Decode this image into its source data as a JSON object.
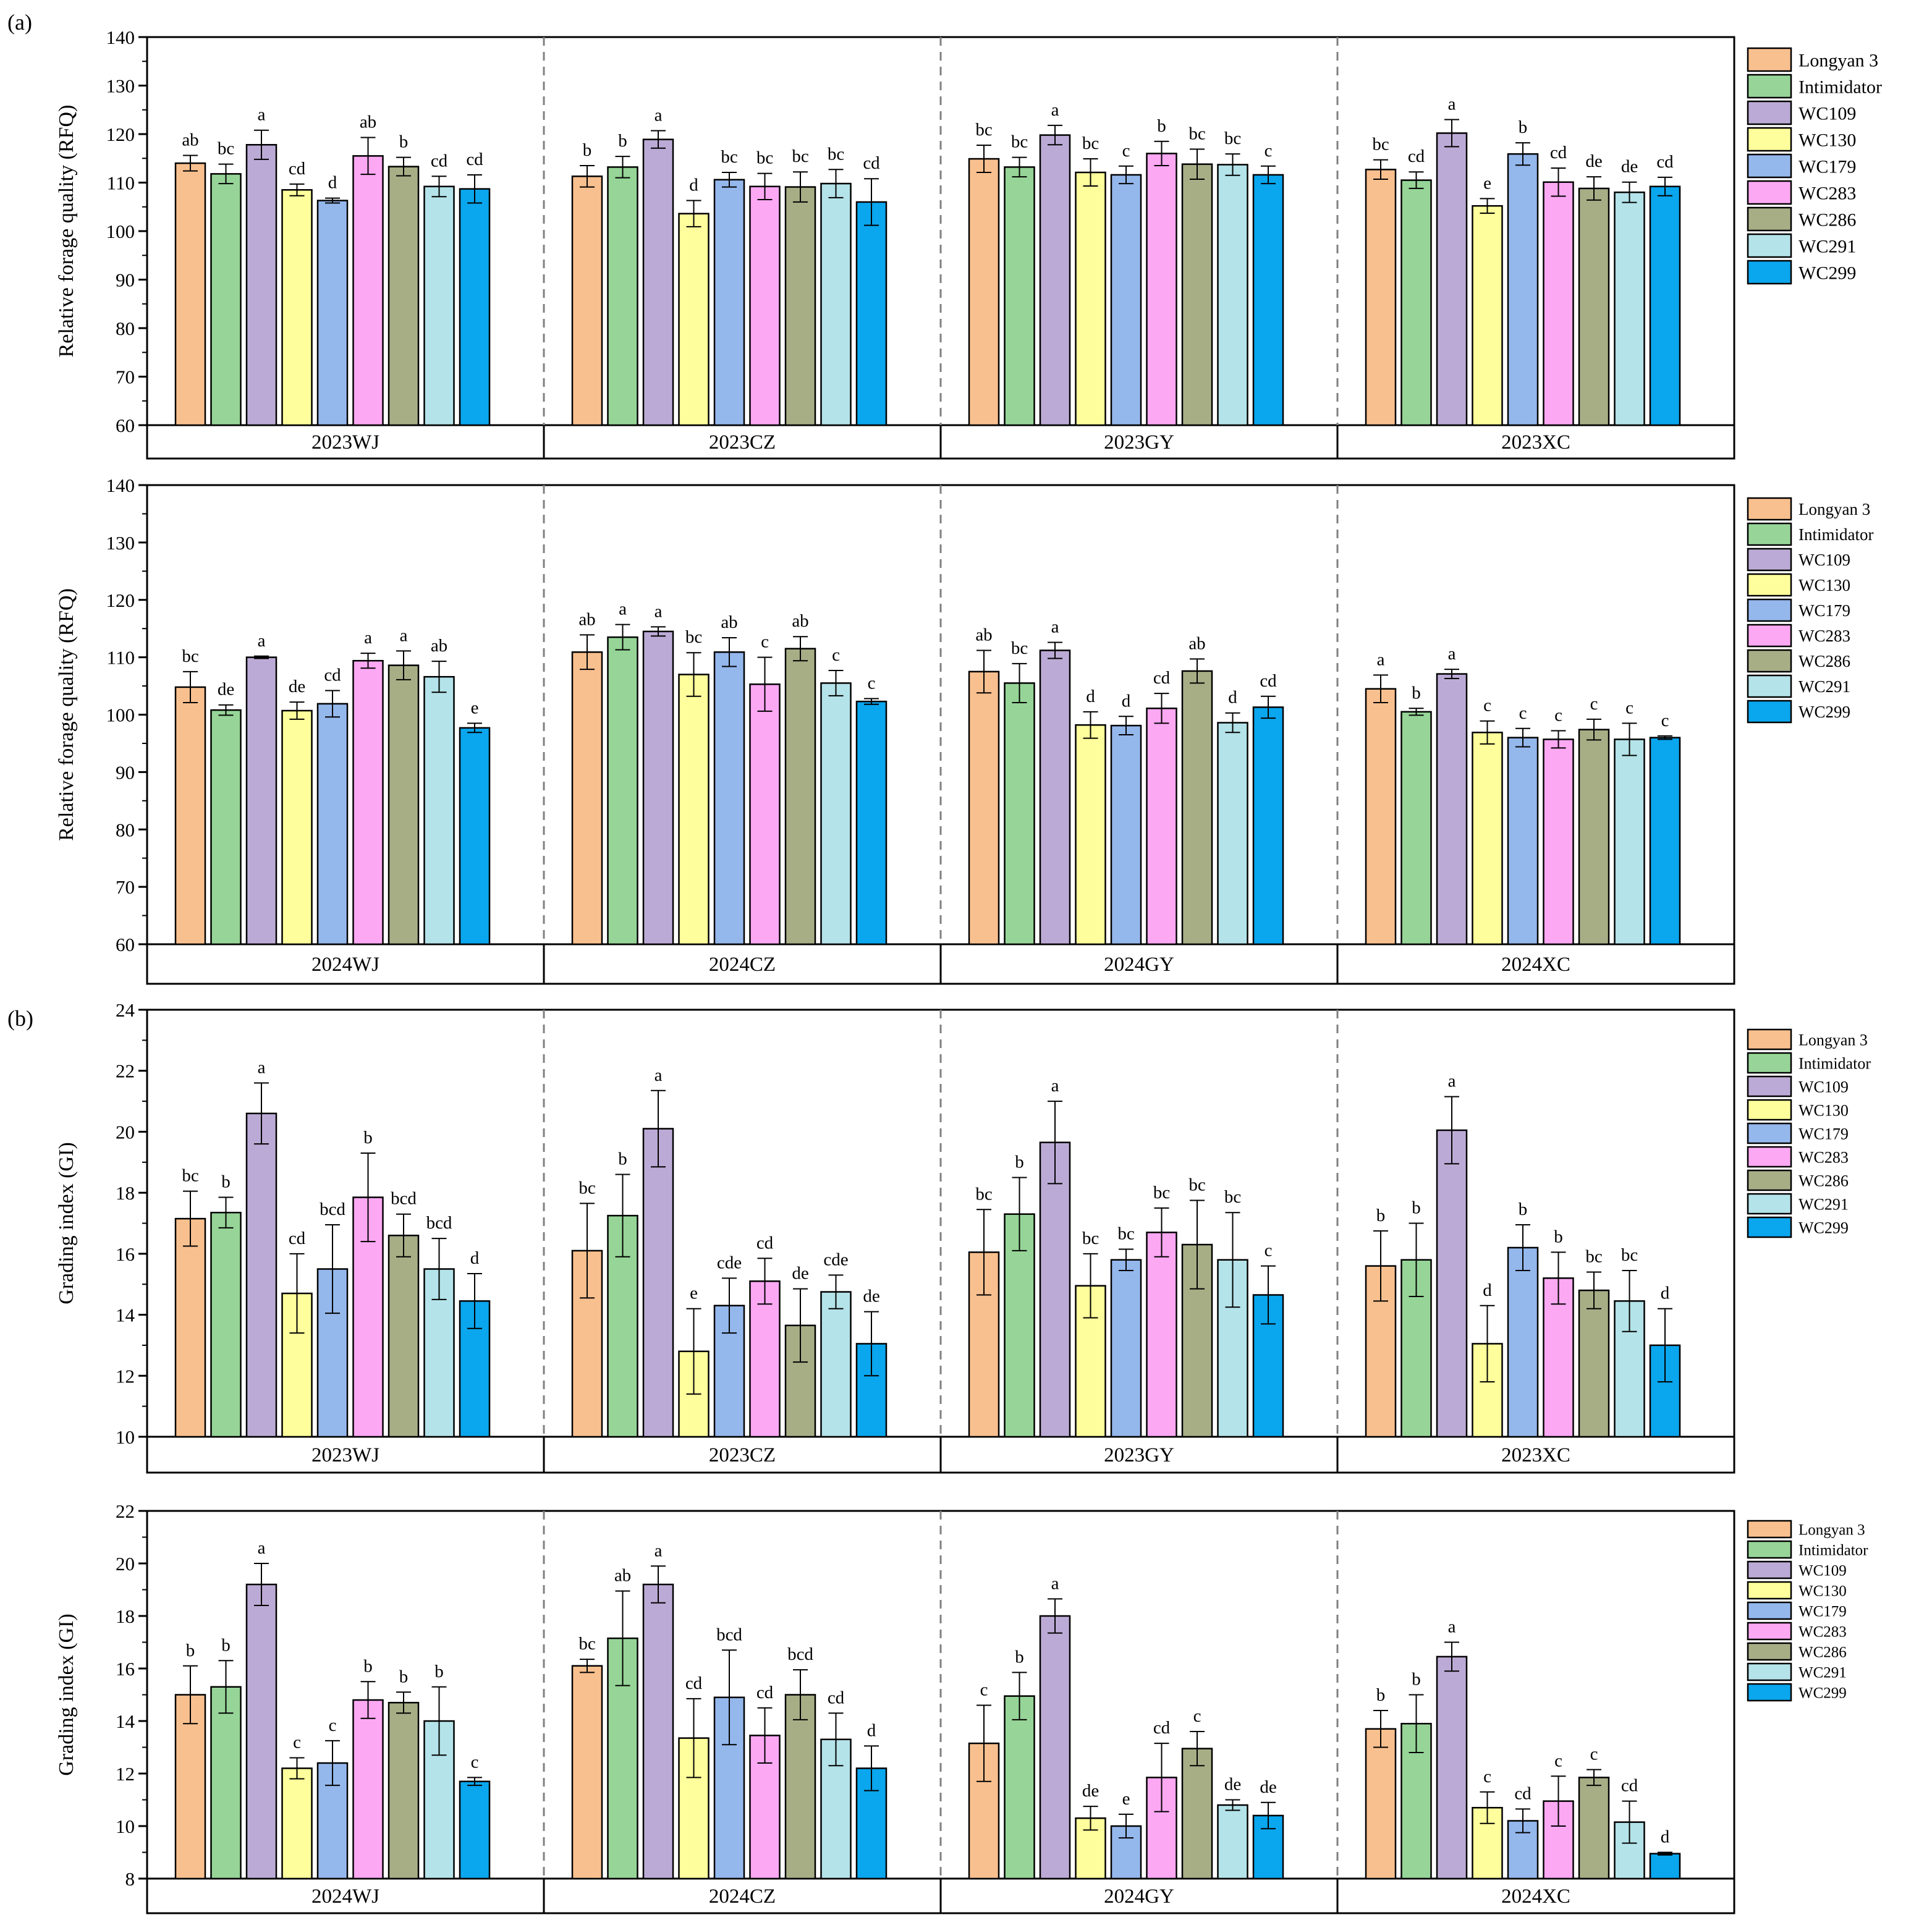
{
  "colors": {
    "Longyan 3": "#f9c08f",
    "Intimidator": "#96d597",
    "WC109": "#bcaad6",
    "WC130": "#fefe9c",
    "WC179": "#94b7ec",
    "WC283": "#fca8f3",
    "WC286": "#a7ae86",
    "WC291": "#b4e3e9",
    "WC299": "#0aa6ee"
  },
  "panel_labels": [
    "(a)",
    "(b)"
  ],
  "chart_data": [
    {
      "type": "bar",
      "ylabel": "Relative forage quality (RFQ)",
      "ylim": [
        60,
        140
      ],
      "yticks": [
        60,
        70,
        80,
        90,
        100,
        110,
        120,
        130,
        140
      ],
      "groups": [
        "2023WJ",
        "2023CZ",
        "2023GY",
        "2023XC"
      ],
      "series_names": [
        "Longyan 3",
        "Intimidator",
        "WC109",
        "WC130",
        "WC179",
        "WC283",
        "WC286",
        "WC291",
        "WC299"
      ],
      "values": [
        [
          114,
          111.8,
          117.8,
          108.5,
          106.3,
          115.5,
          113.3,
          109.2,
          108.7
        ],
        [
          111.3,
          113.2,
          118.9,
          103.6,
          110.6,
          109.2,
          109.1,
          109.8,
          106
        ],
        [
          114.9,
          113.2,
          119.8,
          112.1,
          111.6,
          116,
          113.8,
          113.7,
          111.6
        ],
        [
          112.7,
          110.5,
          120.2,
          105.2,
          115.9,
          110.1,
          108.8,
          108,
          109.2
        ]
      ],
      "errors": [
        [
          1.6,
          2,
          3,
          1.2,
          0.5,
          3.8,
          1.9,
          2.1,
          2.9
        ],
        [
          2.2,
          2.2,
          1.8,
          2.7,
          1.5,
          2.7,
          3.1,
          2.9,
          4.8
        ],
        [
          2.8,
          2,
          2,
          2.8,
          1.8,
          2.5,
          3.1,
          2.2,
          1.8
        ],
        [
          2,
          1.7,
          2.8,
          1.5,
          2.3,
          2.9,
          2.4,
          2.1,
          1.9
        ]
      ],
      "letters": [
        [
          "ab",
          "bc",
          "a",
          "cd",
          "d",
          "ab",
          "b",
          "cd",
          "cd"
        ],
        [
          "b",
          "b",
          "a",
          "d",
          "bc",
          "bc",
          "bc",
          "bc",
          "cd"
        ],
        [
          "bc",
          "bc",
          "a",
          "bc",
          "c",
          "b",
          "bc",
          "bc",
          "c"
        ],
        [
          "bc",
          "cd",
          "a",
          "e",
          "b",
          "cd",
          "de",
          "de",
          "cd"
        ]
      ]
    },
    {
      "type": "bar",
      "ylabel": "Relative forage quality (RFQ)",
      "ylim": [
        60,
        140
      ],
      "yticks": [
        60,
        70,
        80,
        90,
        100,
        110,
        120,
        130,
        140
      ],
      "groups": [
        "2024WJ",
        "2024CZ",
        "2024GY",
        "2024XC"
      ],
      "series_names": [
        "Longyan 3",
        "Intimidator",
        "WC109",
        "WC130",
        "WC179",
        "WC283",
        "WC286",
        "WC291",
        "WC299"
      ],
      "values": [
        [
          104.8,
          100.8,
          110,
          100.7,
          101.9,
          109.4,
          108.6,
          106.6,
          97.7
        ],
        [
          110.9,
          113.5,
          114.5,
          107,
          110.9,
          105.3,
          111.5,
          105.5,
          102.3
        ],
        [
          107.5,
          105.5,
          111.2,
          98.2,
          98.1,
          101.1,
          107.6,
          98.6,
          101.3
        ],
        [
          104.5,
          100.5,
          107.1,
          96.9,
          96,
          95.7,
          97.4,
          95.7,
          96
        ]
      ],
      "errors": [
        [
          2.7,
          0.9,
          0.2,
          1.5,
          2.3,
          1.3,
          2.5,
          2.7,
          0.8
        ],
        [
          3,
          2.2,
          0.8,
          3.8,
          2.5,
          4.7,
          2.1,
          2.2,
          0.5
        ],
        [
          3.7,
          3.4,
          1.4,
          2.3,
          1.6,
          2.6,
          2.1,
          1.7,
          1.9
        ],
        [
          2.4,
          0.6,
          0.8,
          2,
          1.6,
          1.5,
          1.8,
          2.8,
          0.3
        ]
      ],
      "letters": [
        [
          "bc",
          "de",
          "a",
          "de",
          "cd",
          "a",
          "a",
          "ab",
          "e"
        ],
        [
          "ab",
          "a",
          "a",
          "bc",
          "ab",
          "c",
          "ab",
          "c",
          "c"
        ],
        [
          "ab",
          "bc",
          "a",
          "d",
          "d",
          "cd",
          "ab",
          "d",
          "cd"
        ],
        [
          "a",
          "b",
          "a",
          "c",
          "c",
          "c",
          "c",
          "c",
          "c"
        ]
      ]
    },
    {
      "type": "bar",
      "ylabel": "Grading index (GI)",
      "ylim": [
        10,
        24
      ],
      "yticks": [
        10,
        12,
        14,
        16,
        18,
        20,
        22,
        24
      ],
      "groups": [
        "2023WJ",
        "2023CZ",
        "2023GY",
        "2023XC"
      ],
      "series_names": [
        "Longyan 3",
        "Intimidator",
        "WC109",
        "WC130",
        "WC179",
        "WC283",
        "WC286",
        "WC291",
        "WC299"
      ],
      "values": [
        [
          17.15,
          17.35,
          20.6,
          14.7,
          15.5,
          17.85,
          16.6,
          15.5,
          14.45
        ],
        [
          16.1,
          17.25,
          20.1,
          12.8,
          14.3,
          15.1,
          13.65,
          14.75,
          13.05
        ],
        [
          16.05,
          17.3,
          19.65,
          14.95,
          15.8,
          16.7,
          16.3,
          15.8,
          14.65
        ],
        [
          15.6,
          15.8,
          20.05,
          13.05,
          16.2,
          15.2,
          14.8,
          14.45,
          13
        ]
      ],
      "errors": [
        [
          0.9,
          0.5,
          1,
          1.3,
          1.45,
          1.45,
          0.7,
          1,
          0.9
        ],
        [
          1.55,
          1.35,
          1.25,
          1.4,
          0.9,
          0.75,
          1.2,
          0.55,
          1.05
        ],
        [
          1.4,
          1.2,
          1.35,
          1.05,
          0.35,
          0.8,
          1.45,
          1.55,
          0.95
        ],
        [
          1.15,
          1.2,
          1.1,
          1.25,
          0.75,
          0.85,
          0.6,
          1,
          1.2
        ]
      ],
      "letters": [
        [
          "bc",
          "b",
          "a",
          "cd",
          "bcd",
          "b",
          "bcd",
          "bcd",
          "d"
        ],
        [
          "bc",
          "b",
          "a",
          "e",
          "cde",
          "cd",
          "de",
          "cde",
          "de"
        ],
        [
          "bc",
          "b",
          "a",
          "bc",
          "bc",
          "bc",
          "bc",
          "bc",
          "c"
        ],
        [
          "b",
          "b",
          "a",
          "d",
          "b",
          "b",
          "bc",
          "bc",
          "d"
        ]
      ]
    },
    {
      "type": "bar",
      "ylabel": "Grading index (GI)",
      "ylim": [
        8,
        22
      ],
      "yticks": [
        8,
        10,
        12,
        14,
        16,
        18,
        20,
        22
      ],
      "groups": [
        "2024WJ",
        "2024CZ",
        "2024GY",
        "2024XC"
      ],
      "series_names": [
        "Longyan 3",
        "Intimidator",
        "WC109",
        "WC130",
        "WC179",
        "WC283",
        "WC286",
        "WC291",
        "WC299"
      ],
      "values": [
        [
          15,
          15.3,
          19.2,
          12.2,
          12.4,
          14.8,
          14.7,
          14,
          11.7
        ],
        [
          16.1,
          17.15,
          19.2,
          13.35,
          14.9,
          13.45,
          15,
          13.3,
          12.2
        ],
        [
          13.15,
          14.95,
          18,
          10.3,
          10,
          11.85,
          12.95,
          10.8,
          10.4
        ],
        [
          13.7,
          13.9,
          16.45,
          10.7,
          10.2,
          10.95,
          11.85,
          10.15,
          8.95
        ]
      ],
      "errors": [
        [
          1.1,
          1,
          0.8,
          0.4,
          0.85,
          0.7,
          0.4,
          1.3,
          0.15
        ],
        [
          0.25,
          1.8,
          0.7,
          1.5,
          1.8,
          1.05,
          0.95,
          1,
          0.85
        ],
        [
          1.45,
          0.9,
          0.65,
          0.45,
          0.45,
          1.3,
          0.65,
          0.2,
          0.5
        ],
        [
          0.7,
          1.1,
          0.55,
          0.6,
          0.45,
          0.95,
          0.3,
          0.8,
          0.05
        ]
      ],
      "letters": [
        [
          "b",
          "b",
          "a",
          "c",
          "c",
          "b",
          "b",
          "b",
          "c"
        ],
        [
          "bc",
          "ab",
          "a",
          "cd",
          "bcd",
          "cd",
          "bcd",
          "cd",
          "d"
        ],
        [
          "c",
          "b",
          "a",
          "de",
          "e",
          "cd",
          "c",
          "de",
          "de"
        ],
        [
          "b",
          "b",
          "a",
          "c",
          "cd",
          "c",
          "c",
          "cd",
          "d"
        ]
      ]
    }
  ]
}
